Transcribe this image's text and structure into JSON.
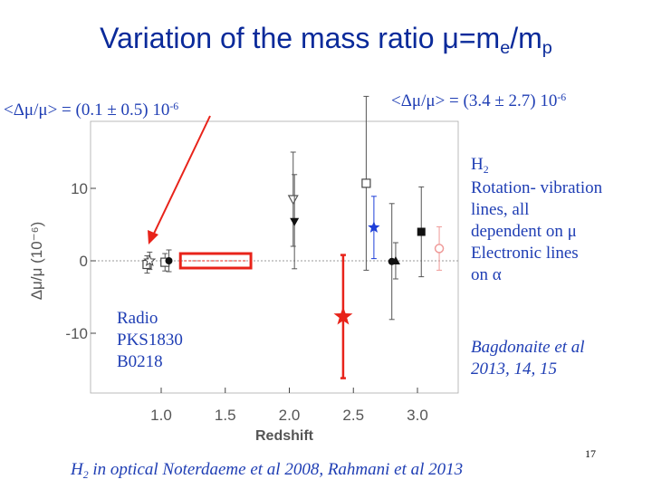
{
  "slide": {
    "title": {
      "main": "Variation of the mass ratio ",
      "mu": "μ",
      "equals": "=m",
      "sub_e": "e",
      "slash": "/m",
      "sub_p": "p"
    },
    "left_result": {
      "main": "<Δμ/μ> = (0.1 ± 0.5) 10",
      "exp": "-6"
    },
    "right_result": {
      "main": "<Δμ/μ> = (3.4 ± 2.7) 10",
      "exp": "-6"
    },
    "side_notes": {
      "h": "H",
      "h_sub": "2",
      "line1": "Rotation- vibration",
      "line2": "lines, all",
      "line3": "dependent on μ",
      "line4": "Electronic lines",
      "line5": "on α"
    },
    "radio_label": [
      "Radio",
      "PKS1830",
      "B0218"
    ],
    "credits": [
      "Bagdonaite et al",
      "2013, 14, 15"
    ],
    "footer": {
      "h": "H",
      "h_sub": "2",
      "rest": " in optical Noterdaeme et al 2008, Rahmani et al 2013"
    },
    "page_number": "17",
    "colors": {
      "title": "#0a2a9a",
      "text": "#1f3eb4",
      "red": "#e8231a",
      "blue": "#1f3fd8",
      "pink": "#ef9a98"
    }
  },
  "chart_data": {
    "type": "scatter",
    "xlabel": "Redshift",
    "ylabel": "Δμ/μ (10⁻⁶)",
    "xlim": [
      0.6,
      3.2
    ],
    "ylim": [
      -17.5,
      17.5
    ],
    "xticks": [
      "1.0",
      "1.5",
      "2.0",
      "2.5",
      "3.0"
    ],
    "yticks": [
      "10",
      "0",
      "-10"
    ],
    "reference_line": 0,
    "points": [
      {
        "x": 0.89,
        "y": -0.5,
        "err": 1.2,
        "marker": "open-square",
        "color": "#444444"
      },
      {
        "x": 0.91,
        "y": 0.0,
        "err": 1.2,
        "marker": "open-star",
        "color": "#444444"
      },
      {
        "x": 1.03,
        "y": -0.2,
        "err": 1.2,
        "marker": "open-square",
        "color": "#444444"
      },
      {
        "x": 1.06,
        "y": 0.0,
        "err": 1.5,
        "marker": "filled-circle",
        "color": "#111111"
      },
      {
        "x": 2.03,
        "y": 8.5,
        "err": 6.5,
        "marker": "open-triangle-down",
        "color": "#555555"
      },
      {
        "x": 2.04,
        "y": 5.4,
        "err": 6.5,
        "marker": "filled-triangle-down",
        "color": "#111111"
      },
      {
        "x": 2.42,
        "y": -7.7,
        "err": 8.5,
        "marker": "filled-star",
        "color": "#e8231a"
      },
      {
        "x": 2.6,
        "y": 10.7,
        "err": 12.0,
        "marker": "open-square",
        "color": "#444444"
      },
      {
        "x": 2.66,
        "y": 4.6,
        "err": 4.3,
        "marker": "filled-star",
        "color": "#1f3fd8"
      },
      {
        "x": 2.8,
        "y": -0.1,
        "err": 8.0,
        "marker": "filled-circle",
        "color": "#111111"
      },
      {
        "x": 2.83,
        "y": 0.0,
        "err": 2.5,
        "marker": "filled-triangle-up",
        "color": "#111111"
      },
      {
        "x": 3.03,
        "y": 4.0,
        "err": 6.2,
        "marker": "filled-square",
        "color": "#111111"
      },
      {
        "x": 3.17,
        "y": 1.7,
        "err": 3.0,
        "marker": "open-circle",
        "color": "#ef9a98"
      }
    ],
    "band": {
      "x_from": 1.15,
      "x_to": 1.7,
      "y_from": -1.0,
      "y_to": 1.0,
      "color": "#e8231a"
    }
  }
}
